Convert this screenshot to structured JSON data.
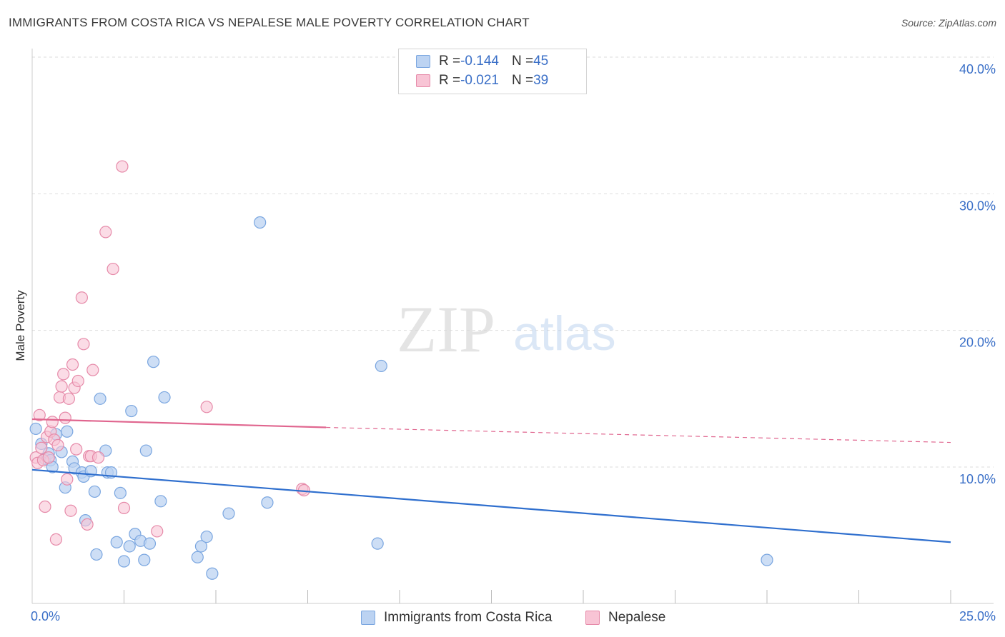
{
  "header": {
    "title": "IMMIGRANTS FROM COSTA RICA VS NEPALESE MALE POVERTY CORRELATION CHART",
    "source": "Source: ZipAtlas.com"
  },
  "watermark": {
    "zip": "ZIP",
    "atlas": "atlas"
  },
  "stats_legend": {
    "rows": [
      {
        "r_label": "R = ",
        "r_value": "-0.144",
        "n_label": "N = ",
        "n_value": "45"
      },
      {
        "r_label": "R = ",
        "r_value": "-0.021",
        "n_label": "N = ",
        "n_value": "39"
      }
    ]
  },
  "chart_data": {
    "type": "scatter",
    "title": "IMMIGRANTS FROM COSTA RICA VS NEPALESE MALE POVERTY CORRELATION CHART",
    "xlabel": "",
    "ylabel": "Male Poverty",
    "xlim": [
      0,
      25
    ],
    "ylim": [
      0,
      42
    ],
    "x_tick_labels": [
      "0.0%",
      "25.0%"
    ],
    "y_ticks": [
      10,
      20,
      30,
      40
    ],
    "y_tick_labels": [
      "10.0%",
      "20.0%",
      "30.0%",
      "40.0%"
    ],
    "grid": true,
    "legend_position": "bottom-center",
    "colors": {
      "blue_fill": "#bcd3f2",
      "blue_stroke": "#7aa6e0",
      "blue_line": "#2f6fce",
      "pink_fill": "#f8c4d5",
      "pink_stroke": "#e68aa9",
      "pink_line": "#e0668f",
      "tick_label": "#3a6fc7",
      "grid": "#dddddd"
    },
    "series": [
      {
        "name": "Immigrants from Costa Rica",
        "color": "#7aa6e0",
        "points": [
          [
            0.1,
            12.8
          ],
          [
            0.25,
            11.7
          ],
          [
            0.35,
            10.6
          ],
          [
            0.45,
            11.0
          ],
          [
            0.5,
            10.5
          ],
          [
            0.55,
            10.0
          ],
          [
            0.65,
            12.4
          ],
          [
            0.8,
            11.1
          ],
          [
            0.9,
            8.5
          ],
          [
            0.95,
            12.6
          ],
          [
            1.1,
            10.4
          ],
          [
            1.15,
            9.9
          ],
          [
            1.35,
            9.6
          ],
          [
            1.4,
            9.3
          ],
          [
            1.45,
            6.1
          ],
          [
            1.6,
            9.7
          ],
          [
            1.7,
            8.2
          ],
          [
            1.75,
            3.6
          ],
          [
            1.85,
            15.0
          ],
          [
            2.0,
            11.2
          ],
          [
            2.05,
            9.6
          ],
          [
            2.15,
            9.6
          ],
          [
            2.3,
            4.5
          ],
          [
            2.4,
            8.1
          ],
          [
            2.5,
            3.1
          ],
          [
            2.65,
            4.2
          ],
          [
            2.7,
            14.1
          ],
          [
            2.8,
            5.1
          ],
          [
            2.95,
            4.6
          ],
          [
            3.05,
            3.2
          ],
          [
            3.1,
            11.2
          ],
          [
            3.2,
            4.4
          ],
          [
            3.3,
            17.7
          ],
          [
            3.5,
            7.5
          ],
          [
            3.6,
            15.1
          ],
          [
            4.5,
            3.4
          ],
          [
            4.6,
            4.2
          ],
          [
            4.75,
            4.9
          ],
          [
            4.9,
            2.2
          ],
          [
            5.35,
            6.6
          ],
          [
            6.2,
            27.9
          ],
          [
            6.4,
            7.4
          ],
          [
            9.4,
            4.4
          ],
          [
            9.5,
            17.4
          ],
          [
            20.0,
            3.2
          ]
        ]
      },
      {
        "name": "Nepalese",
        "color": "#e68aa9",
        "points": [
          [
            0.1,
            10.7
          ],
          [
            0.15,
            10.3
          ],
          [
            0.2,
            13.8
          ],
          [
            0.25,
            11.4
          ],
          [
            0.3,
            10.5
          ],
          [
            0.35,
            7.1
          ],
          [
            0.4,
            12.2
          ],
          [
            0.45,
            10.7
          ],
          [
            0.5,
            12.6
          ],
          [
            0.55,
            13.3
          ],
          [
            0.6,
            12.0
          ],
          [
            0.65,
            4.7
          ],
          [
            0.7,
            11.6
          ],
          [
            0.75,
            15.1
          ],
          [
            0.8,
            15.9
          ],
          [
            0.85,
            16.8
          ],
          [
            0.9,
            13.6
          ],
          [
            0.95,
            9.1
          ],
          [
            1.0,
            15.0
          ],
          [
            1.05,
            6.8
          ],
          [
            1.1,
            17.5
          ],
          [
            1.15,
            15.8
          ],
          [
            1.2,
            11.3
          ],
          [
            1.25,
            16.3
          ],
          [
            1.35,
            22.4
          ],
          [
            1.4,
            19.0
          ],
          [
            1.5,
            5.8
          ],
          [
            1.55,
            10.8
          ],
          [
            1.6,
            10.8
          ],
          [
            1.65,
            17.1
          ],
          [
            1.8,
            10.7
          ],
          [
            2.0,
            27.2
          ],
          [
            2.2,
            24.5
          ],
          [
            2.45,
            32.0
          ],
          [
            2.5,
            7.0
          ],
          [
            3.4,
            5.3
          ],
          [
            4.75,
            14.4
          ],
          [
            7.35,
            8.4
          ],
          [
            7.4,
            8.3
          ]
        ]
      }
    ],
    "trend_lines": [
      {
        "series": "Immigrants from Costa Rica",
        "x": [
          0,
          25
        ],
        "y": [
          9.8,
          4.5
        ]
      },
      {
        "series": "Nepalese",
        "x": [
          0,
          8.0,
          25
        ],
        "y": [
          13.5,
          12.9,
          11.8
        ],
        "solid_until": 8.0
      }
    ]
  }
}
